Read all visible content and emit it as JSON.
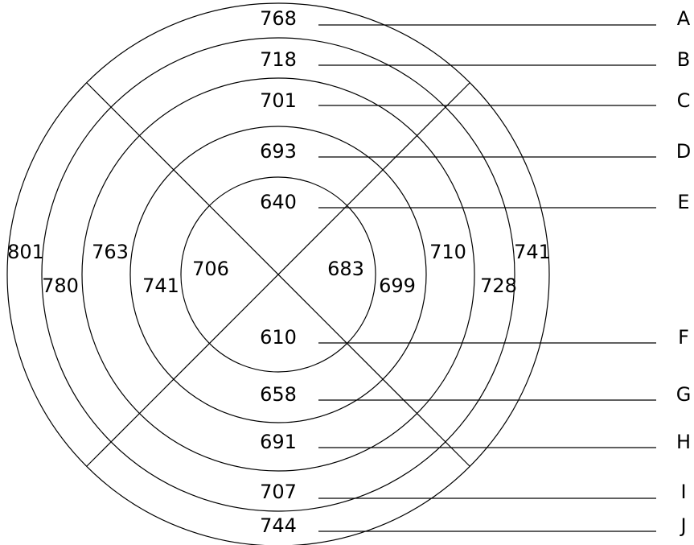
{
  "diagram": {
    "top_values": [
      "768",
      "718",
      "701",
      "693",
      "640"
    ],
    "bottom_values": [
      "610",
      "658",
      "691",
      "707",
      "744"
    ],
    "left_values": [
      "801",
      "780",
      "763",
      "741",
      "706"
    ],
    "right_values": [
      "683",
      "699",
      "710",
      "728",
      "741"
    ],
    "row_labels": [
      "A",
      "B",
      "C",
      "D",
      "E",
      "F",
      "G",
      "H",
      "I",
      "J"
    ]
  }
}
